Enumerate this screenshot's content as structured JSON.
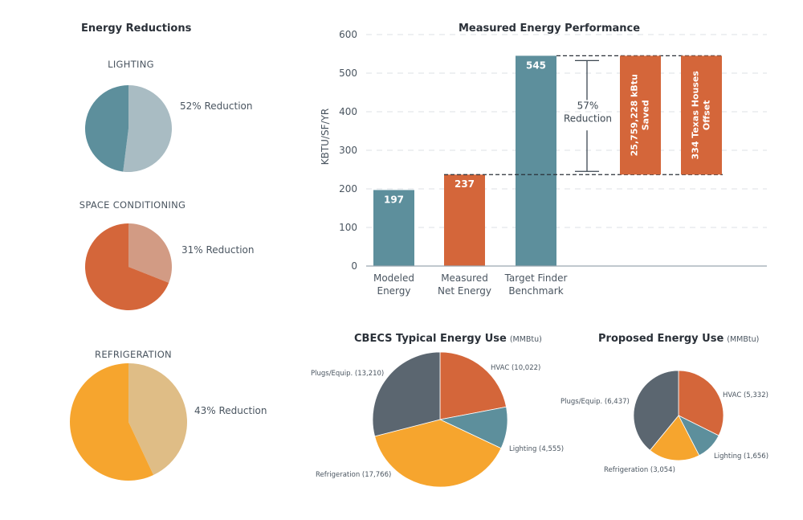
{
  "colors": {
    "teal": "#5d8f9c",
    "teal_light": "#a9bcc3",
    "orange": "#d4663a",
    "orange_light": "#d29b84",
    "amber": "#f6a52e",
    "amber_light": "#dfbd86",
    "slate": "#5b6670",
    "grid": "#d8dde0",
    "axis": "#9aa8b0",
    "text": "#4a5560"
  },
  "reductions": {
    "title": "Energy Reductions",
    "items": [
      {
        "label": "LIGHTING",
        "reduction_pct": 52,
        "reduction_text": "52% Reduction",
        "color": "#5d8f9c",
        "light_color": "#a9bcc3"
      },
      {
        "label": "SPACE CONDITIONING",
        "reduction_pct": 31,
        "reduction_text": "31% Reduction",
        "color": "#d4663a",
        "light_color": "#d29b84"
      },
      {
        "label": "REFRIGERATION",
        "reduction_pct": 43,
        "reduction_text": "43% Reduction",
        "color": "#f6a52e",
        "light_color": "#dfbd86"
      }
    ]
  },
  "chart_data": [
    {
      "type": "bar",
      "title": "Measured Energy Performance",
      "xlabel": "",
      "ylabel": "KBTU/SF/YR",
      "ylim": [
        0,
        600
      ],
      "yticks": [
        0,
        100,
        200,
        300,
        400,
        500,
        600
      ],
      "grid": true,
      "categories": [
        {
          "line1": "Modeled",
          "line2": "Energy"
        },
        {
          "line1": "Measured",
          "line2": "Net Energy"
        },
        {
          "line1": "Target Finder",
          "line2": "Benchmark"
        }
      ],
      "values": [
        197,
        237,
        545
      ],
      "data_labels": [
        "197",
        "237",
        "545"
      ],
      "bar_colors": [
        "#5d8f9c",
        "#d4663a",
        "#5d8f9c"
      ],
      "annotations": {
        "reduction": {
          "line1": "57%",
          "line2": "Reduction",
          "from": 237,
          "to": 545
        },
        "callouts": [
          {
            "line1": "25,759,228 kBtu",
            "line2": "Saved",
            "from": 237,
            "to": 545
          },
          {
            "line1": "334 Texas Houses",
            "line2": "Offset",
            "from": 237,
            "to": 545
          }
        ]
      }
    },
    {
      "type": "pie",
      "title": "CBECS Typical Energy Use",
      "unit": "(MMBtu)",
      "slices": [
        {
          "name": "HVAC",
          "value": 10022,
          "label": "HVAC (10,022)",
          "color": "#d4663a"
        },
        {
          "name": "Lighting",
          "value": 4555,
          "label": "Lighting (4,555)",
          "color": "#5d8f9c"
        },
        {
          "name": "Refrigeration",
          "value": 17766,
          "label": "Refrigeration (17,766)",
          "color": "#f6a52e"
        },
        {
          "name": "Plugs/Equip.",
          "value": 13210,
          "label": "Plugs/Equip. (13,210)",
          "color": "#5b6670"
        }
      ]
    },
    {
      "type": "pie",
      "title": "Proposed Energy Use",
      "unit": "(MMBtu)",
      "slices": [
        {
          "name": "HVAC",
          "value": 5332,
          "label": "HVAC (5,332)",
          "color": "#d4663a"
        },
        {
          "name": "Lighting",
          "value": 1656,
          "label": "Lighting (1,656)",
          "color": "#5d8f9c"
        },
        {
          "name": "Refrigeration",
          "value": 3054,
          "label": "Refrigeration (3,054)",
          "color": "#f6a52e"
        },
        {
          "name": "Plugs/Equip.",
          "value": 6437,
          "label": "Plugs/Equip. (6,437)",
          "color": "#5b6670"
        }
      ]
    }
  ]
}
